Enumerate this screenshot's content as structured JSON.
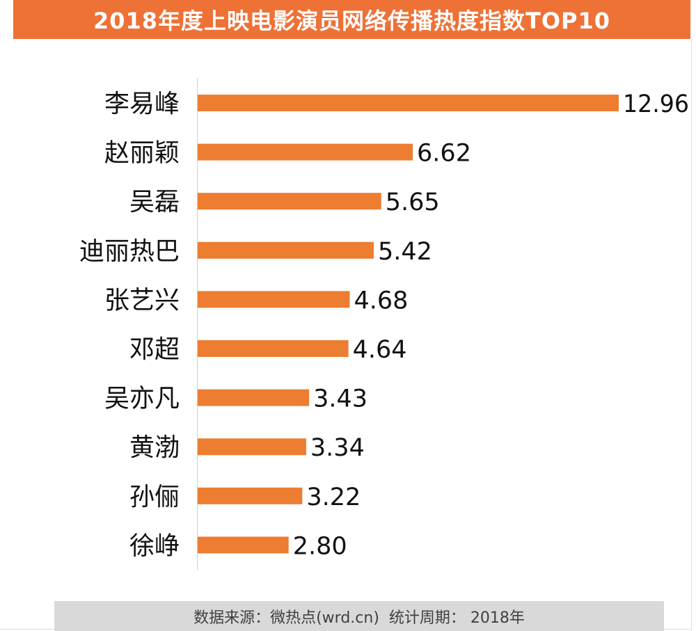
{
  "header": {
    "title": "2018年度上映电影演员网络传播热度指数TOP10"
  },
  "footer": {
    "source": "数据来源：微热点(wrd.cn)",
    "period": "统计周期：  2018年"
  },
  "colors": {
    "title_bg": "#ee7136",
    "bar": "#ed7d31",
    "footer_bg": "#d9d9da",
    "axis": "#d0d0d0",
    "label_text": "#111111"
  },
  "chart_data": {
    "type": "bar",
    "orientation": "horizontal",
    "title": "2018年度上映电影演员网络传播热度指数TOP10",
    "xlabel": "",
    "ylabel": "",
    "categories": [
      "李易峰",
      "赵丽颖",
      "吴磊",
      "迪丽热巴",
      "张艺兴",
      "邓超",
      "吴亦凡",
      "黄渤",
      "孙俪",
      "徐峥"
    ],
    "values": [
      12.96,
      6.62,
      5.65,
      5.42,
      4.68,
      4.64,
      3.43,
      3.34,
      3.22,
      2.8
    ],
    "value_labels": [
      "12.96",
      "6.62",
      "5.65",
      "5.42",
      "4.68",
      "4.64",
      "3.43",
      "3.34",
      "3.22",
      "2.80"
    ],
    "xlim": [
      0,
      12.96
    ],
    "grid": false,
    "legend": "none",
    "data_labels": "outside-end"
  }
}
